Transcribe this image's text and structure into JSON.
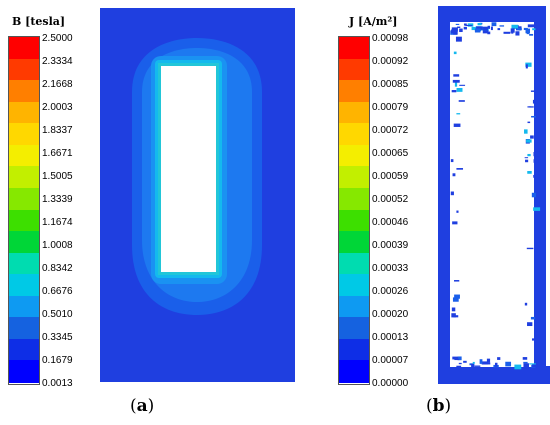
{
  "panel_a": {
    "legend_title": "B [tesla]",
    "legend_values": [
      "2.5000",
      "2.3334",
      "2.1668",
      "2.0003",
      "1.8337",
      "1.6671",
      "1.5005",
      "1.3339",
      "1.1674",
      "1.0008",
      "0.8342",
      "0.6676",
      "0.5010",
      "0.3345",
      "0.1679",
      "0.0013"
    ],
    "caption_open": "(",
    "caption_letter": "a",
    "caption_close": ")"
  },
  "panel_b": {
    "legend_title": "J [A/m²]",
    "legend_values": [
      "0.00098",
      "0.00092",
      "0.00085",
      "0.00079",
      "0.00072",
      "0.00065",
      "0.00059",
      "0.00052",
      "0.00046",
      "0.00039",
      "0.00033",
      "0.00026",
      "0.00020",
      "0.00013",
      "0.00007",
      "0.00000"
    ],
    "caption_open": "(",
    "caption_letter": "b",
    "caption_close": ")"
  },
  "colors": {
    "scale": [
      "#ff0000",
      "#ff3a00",
      "#ff7f00",
      "#ffb400",
      "#ffd800",
      "#f4ee00",
      "#c2ef00",
      "#86e800",
      "#3ddf00",
      "#00d637",
      "#00dcb0",
      "#00c9e6",
      "#0e9af2",
      "#1562e0",
      "#0e2ee6",
      "#0000ff"
    ],
    "field_background": "#1f3fe0"
  }
}
